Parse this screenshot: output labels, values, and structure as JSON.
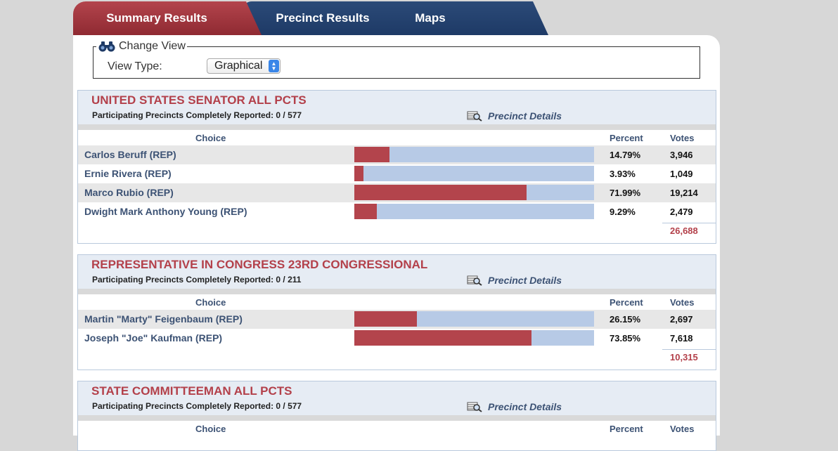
{
  "tabs": {
    "summary": "Summary Results",
    "precinct": "Precinct Results",
    "maps": "Maps"
  },
  "change_view": {
    "legend": "Change View",
    "view_type_label": "View Type:",
    "view_type_value": "Graphical"
  },
  "columns": {
    "choice": "Choice",
    "percent": "Percent",
    "votes": "Votes"
  },
  "precinct_details_label": "Precinct Details",
  "races": [
    {
      "title": "UNITED STATES SENATOR ALL PCTS",
      "subtitle": "Participating Precincts Completely Reported: 0 / 577",
      "total": "26,688",
      "candidates": [
        {
          "name": "Carlos Beruff (REP)",
          "percent": "14.79%",
          "votes": "3,946",
          "share": 0.1479
        },
        {
          "name": "Ernie Rivera (REP)",
          "percent": "3.93%",
          "votes": "1,049",
          "share": 0.0393
        },
        {
          "name": "Marco Rubio (REP)",
          "percent": "71.99%",
          "votes": "19,214",
          "share": 0.7199
        },
        {
          "name": "Dwight Mark Anthony Young (REP)",
          "percent": "9.29%",
          "votes": "2,479",
          "share": 0.0929
        }
      ]
    },
    {
      "title": "REPRESENTATIVE IN CONGRESS 23RD CONGRESSIONAL",
      "subtitle": "Participating Precincts Completely Reported: 0 / 211",
      "total": "10,315",
      "candidates": [
        {
          "name": "Martin \"Marty\" Feigenbaum (REP)",
          "percent": "26.15%",
          "votes": "2,697",
          "share": 0.2615
        },
        {
          "name": "Joseph \"Joe\" Kaufman (REP)",
          "percent": "73.85%",
          "votes": "7,618",
          "share": 0.7385
        }
      ]
    },
    {
      "title": "STATE COMMITTEEMAN ALL PCTS",
      "subtitle": "Participating Precincts Completely Reported: 0 / 577",
      "total": "",
      "candidates": []
    }
  ]
}
